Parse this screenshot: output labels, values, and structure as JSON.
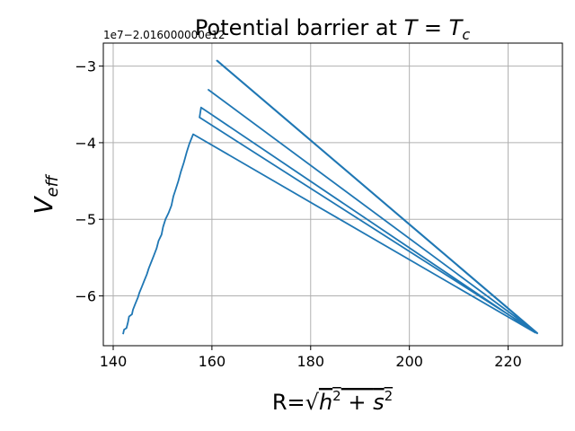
{
  "chart_data": {
    "type": "line",
    "title": "Potential barrier at T = Tc",
    "xlabel": "R=√(h² + s²)",
    "ylabel": "V_eff",
    "y_offset_text": "1e7−2.016000000e12",
    "xlim": [
      138,
      231
    ],
    "ylim": [
      -6.65,
      -2.7
    ],
    "grid": true,
    "xticks": [
      140,
      160,
      180,
      200,
      220
    ],
    "yticks": [
      -6,
      -5,
      -4,
      -3
    ],
    "xtick_labels": [
      "140",
      "160",
      "180",
      "200",
      "220"
    ],
    "ytick_labels": [
      "−6",
      "−5",
      "−4",
      "−3"
    ],
    "color": "#1f77b4",
    "series": [
      {
        "points": [
          [
            142.0,
            -6.5
          ],
          [
            142.2,
            -6.44
          ],
          [
            142.7,
            -6.42
          ],
          [
            143.0,
            -6.34
          ],
          [
            143.2,
            -6.27
          ],
          [
            143.8,
            -6.24
          ],
          [
            144.0,
            -6.18
          ],
          [
            144.5,
            -6.1
          ],
          [
            145.0,
            -6.02
          ],
          [
            145.3,
            -5.96
          ],
          [
            145.8,
            -5.88
          ],
          [
            146.3,
            -5.8
          ],
          [
            146.8,
            -5.72
          ],
          [
            147.2,
            -5.64
          ],
          [
            147.7,
            -5.56
          ],
          [
            148.2,
            -5.48
          ],
          [
            148.8,
            -5.38
          ],
          [
            149.2,
            -5.28
          ],
          [
            149.8,
            -5.2
          ],
          [
            150.1,
            -5.1
          ],
          [
            150.6,
            -5.0
          ],
          [
            151.2,
            -4.92
          ],
          [
            151.8,
            -4.82
          ],
          [
            152.2,
            -4.7
          ],
          [
            152.7,
            -4.6
          ],
          [
            153.2,
            -4.5
          ],
          [
            153.7,
            -4.38
          ],
          [
            154.3,
            -4.26
          ],
          [
            154.9,
            -4.12
          ],
          [
            155.4,
            -4.02
          ],
          [
            156.2,
            -3.89
          ],
          [
            225.5,
            -6.48
          ],
          [
            157.8,
            -3.54
          ],
          [
            157.5,
            -3.67
          ],
          [
            225.8,
            -6.48
          ],
          [
            159.3,
            -3.31
          ],
          [
            225.8,
            -6.48
          ],
          [
            161.0,
            -2.93
          ],
          [
            225.9,
            -6.49
          ],
          [
            161.1,
            -2.93
          ],
          [
            226.0,
            -6.49
          ]
        ]
      }
    ]
  }
}
